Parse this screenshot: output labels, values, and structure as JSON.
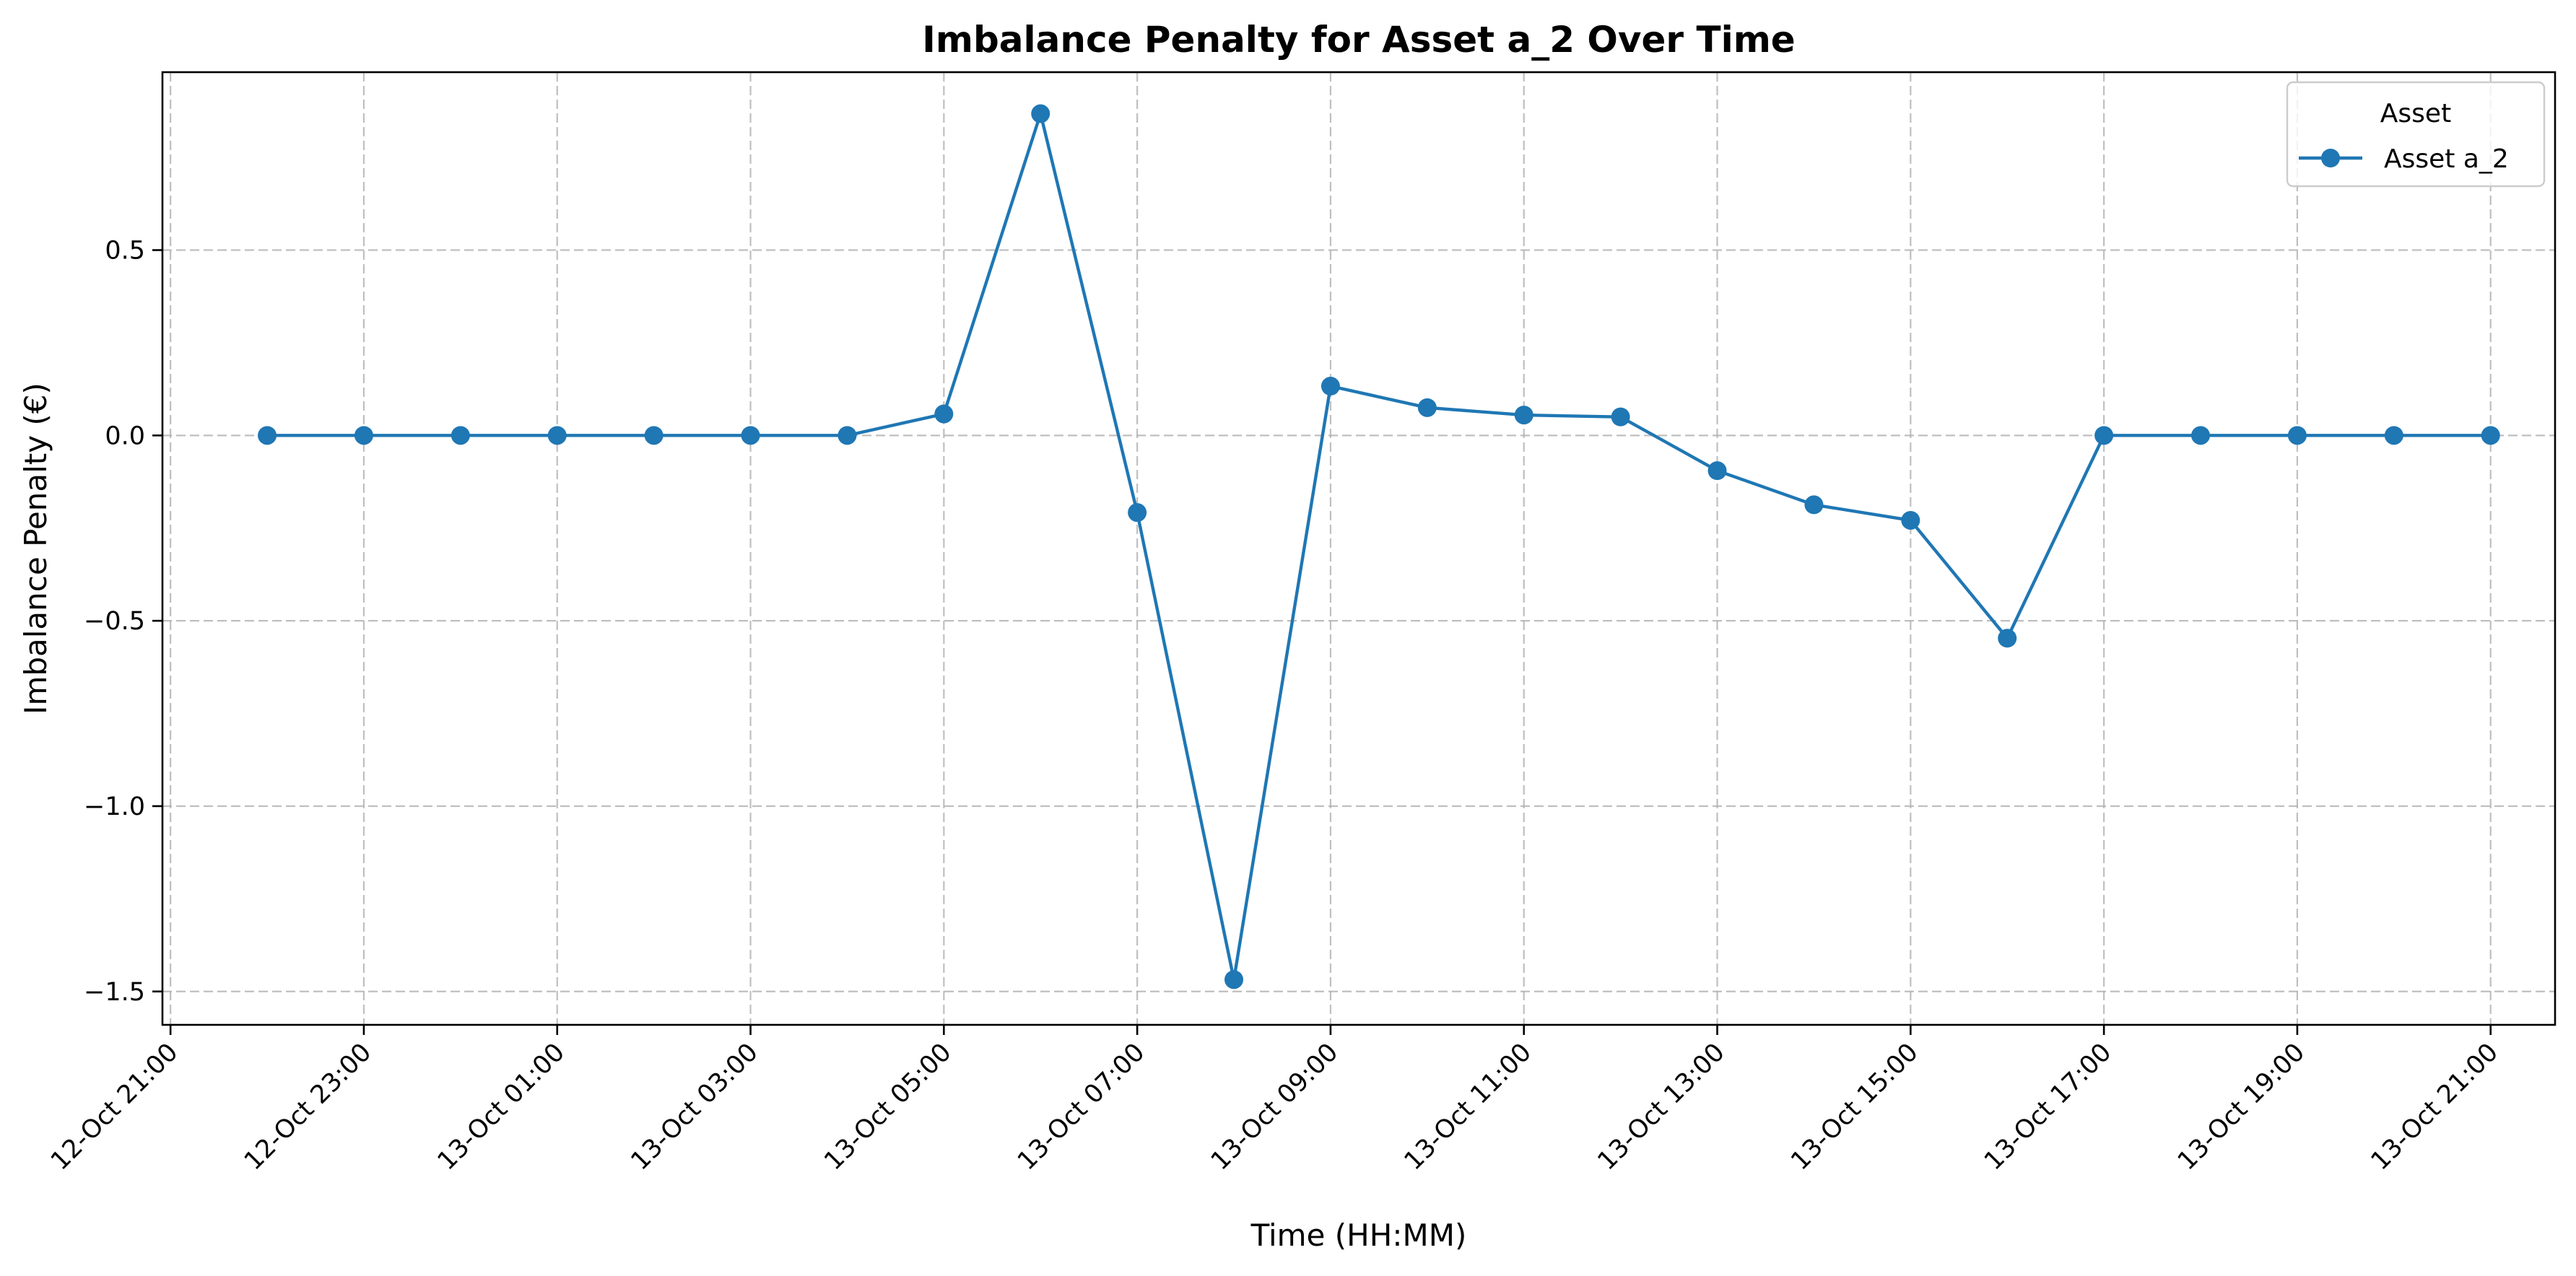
{
  "chart_data": {
    "type": "line",
    "title": "Imbalance Penalty for Asset a_2 Over Time",
    "xlabel": "Time (HH:MM)",
    "ylabel": "Imbalance Penalty (€)",
    "x_ticks": [
      "12-Oct 21:00",
      "12-Oct 23:00",
      "13-Oct 01:00",
      "13-Oct 03:00",
      "13-Oct 05:00",
      "13-Oct 07:00",
      "13-Oct 09:00",
      "13-Oct 11:00",
      "13-Oct 13:00",
      "13-Oct 15:00",
      "13-Oct 17:00",
      "13-Oct 19:00",
      "13-Oct 21:00"
    ],
    "y_ticks": [
      "0.5",
      "0.0",
      "−0.5",
      "−1.0",
      "−1.5"
    ],
    "y_tick_values": [
      0.5,
      0.0,
      -0.5,
      -1.0,
      -1.5
    ],
    "xlim": [
      "2023-10-12 20:55",
      "2023-10-13 21:40"
    ],
    "ylim": [
      -1.59,
      0.98
    ],
    "grid": true,
    "legend": {
      "title": "Asset",
      "position": "top-right"
    },
    "series": [
      {
        "name": "Asset a_2",
        "color": "#1f77b4",
        "marker": "circle",
        "x": [
          "12-Oct 22:00",
          "12-Oct 23:00",
          "13-Oct 00:00",
          "13-Oct 01:00",
          "13-Oct 02:00",
          "13-Oct 03:00",
          "13-Oct 04:00",
          "13-Oct 05:00",
          "13-Oct 06:00",
          "13-Oct 07:00",
          "13-Oct 08:00",
          "13-Oct 09:00",
          "13-Oct 10:00",
          "13-Oct 11:00",
          "13-Oct 12:00",
          "13-Oct 13:00",
          "13-Oct 14:00",
          "13-Oct 15:00",
          "13-Oct 16:00",
          "13-Oct 17:00",
          "13-Oct 18:00",
          "13-Oct 19:00",
          "13-Oct 20:00",
          "13-Oct 21:00"
        ],
        "values": [
          0.0,
          0.0,
          0.0,
          0.0,
          0.0,
          0.0,
          0.0,
          0.058,
          0.868,
          -0.208,
          -1.468,
          0.133,
          0.075,
          0.055,
          0.05,
          -0.095,
          -0.187,
          -0.229,
          -0.547,
          0.0,
          0.0,
          0.0,
          0.0,
          0.0
        ]
      }
    ]
  }
}
